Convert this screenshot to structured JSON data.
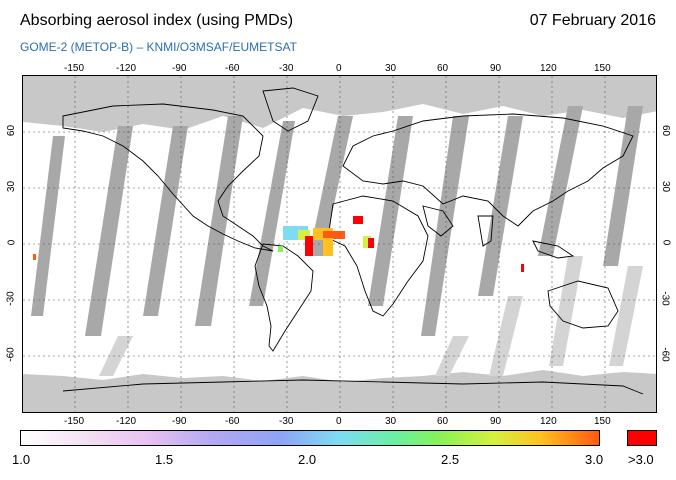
{
  "header": {
    "title": "Absorbing aerosol index (using PMDs)",
    "date": "07 February 2016",
    "subtitle": "GOME-2 (METOP-B)  –  KNMI/O3MSAF/EUMETSAT"
  },
  "map": {
    "lon_ticks": [
      "-150",
      "-120",
      "-90",
      "-60",
      "-30",
      "0",
      "30",
      "60",
      "90",
      "120",
      "150"
    ],
    "lat_ticks_left": [
      "60",
      "30",
      "0",
      "-30",
      "-60"
    ],
    "lat_ticks_right": [
      "60",
      "30",
      "0",
      "-30",
      "-60"
    ],
    "colors": {
      "land_mask": "#c8c8c8",
      "orbit_gap": "#a8a8a8",
      "coast": "#000000",
      "high_aai": "#ff0000"
    }
  },
  "colorbar": {
    "labels": [
      "1.0",
      "1.5",
      "2.0",
      "2.5",
      "3.0"
    ],
    "overflow_label": ">3.0",
    "overflow_color": "#ff0000"
  }
}
